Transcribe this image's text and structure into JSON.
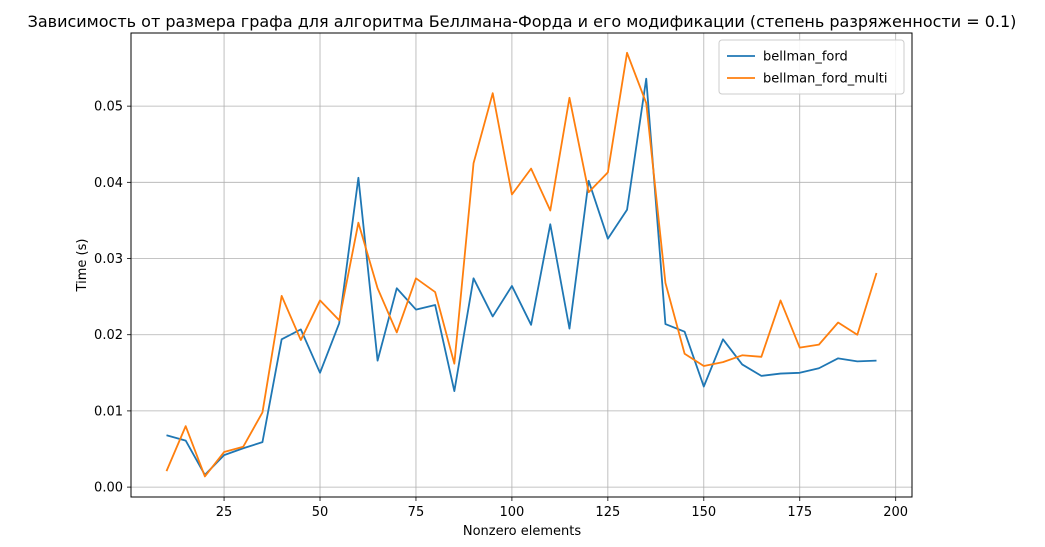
{
  "chart_data": {
    "type": "line",
    "title": "Зависимость от размера графа для алгоритма Беллмана-Форда и его модификации (степень разряженности = 0.1)",
    "xlabel": "Nonzero elements",
    "ylabel": "Time (s)",
    "xlim": [
      0.75,
      204.25
    ],
    "ylim": [
      -0.0013,
      0.0596
    ],
    "xticks": [
      25,
      50,
      75,
      100,
      125,
      150,
      175,
      200
    ],
    "xtick_labels": [
      "25",
      "50",
      "75",
      "100",
      "125",
      "150",
      "175",
      "200"
    ],
    "yticks": [
      0.0,
      0.01,
      0.02,
      0.03,
      0.04,
      0.05
    ],
    "ytick_labels": [
      "0.00",
      "0.01",
      "0.02",
      "0.03",
      "0.04",
      "0.05"
    ],
    "grid": true,
    "legend_position": "top-right",
    "x": [
      10,
      15,
      20,
      25,
      30,
      35,
      40,
      45,
      50,
      55,
      60,
      65,
      70,
      75,
      80,
      85,
      90,
      95,
      100,
      105,
      110,
      115,
      120,
      125,
      130,
      135,
      140,
      145,
      150,
      155,
      160,
      165,
      170,
      175,
      180,
      185,
      190,
      195
    ],
    "series": [
      {
        "name": "bellman_ford",
        "color": "#1f77b4",
        "values": [
          0.0068,
          0.0061,
          0.0016,
          0.0042,
          0.0051,
          0.0059,
          0.0194,
          0.0207,
          0.015,
          0.0215,
          0.0406,
          0.0166,
          0.0261,
          0.0233,
          0.0239,
          0.0126,
          0.0274,
          0.0224,
          0.0264,
          0.0213,
          0.0345,
          0.0208,
          0.0402,
          0.0326,
          0.0364,
          0.0536,
          0.0214,
          0.0204,
          0.0132,
          0.0194,
          0.0161,
          0.0146,
          0.0149,
          0.015,
          0.0156,
          0.0169,
          0.0165,
          0.0166
        ]
      },
      {
        "name": "bellman_ford_multi",
        "color": "#ff7f0e",
        "values": [
          0.0021,
          0.008,
          0.0014,
          0.0046,
          0.0053,
          0.0098,
          0.0251,
          0.0193,
          0.0245,
          0.0219,
          0.0347,
          0.0261,
          0.0203,
          0.0274,
          0.0256,
          0.0162,
          0.0425,
          0.0517,
          0.0384,
          0.0418,
          0.0363,
          0.0511,
          0.0387,
          0.0413,
          0.057,
          0.0504,
          0.0268,
          0.0175,
          0.0159,
          0.0164,
          0.0173,
          0.0171,
          0.0245,
          0.0183,
          0.0187,
          0.0216,
          0.02,
          0.0281
        ]
      }
    ]
  }
}
